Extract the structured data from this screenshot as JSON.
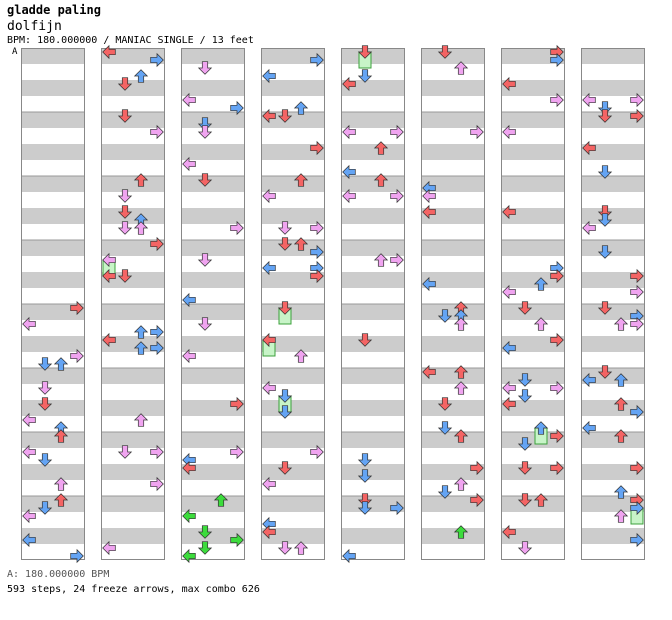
{
  "header": {
    "song_title": "gladde paling",
    "artist": "dolfijn",
    "meta": "BPM: 180.000000 / MANIAC SINGLE / 13 feet",
    "segment_marker": "A"
  },
  "footer": {
    "bpm_line": "A: 180.000000 BPM",
    "stats_line": "593 steps, 24 freeze arrows, max combo 626"
  },
  "colors": {
    "quarter": "#f46464",
    "eighth": "#f0a4f0",
    "sixteenth": "#64a4f4",
    "special": "#3cdc3c",
    "freeze_fill": "#c8f4c8",
    "stripe": "#cccccc",
    "border": "#888888"
  },
  "icons": {
    "left_arrow": "left-arrow-icon",
    "down_arrow": "down-arrow-icon",
    "up_arrow": "up-arrow-icon",
    "right_arrow": "right-arrow-icon"
  },
  "chart_data": {
    "type": "table",
    "columns": 8,
    "measures_per_column": 8,
    "lanes": [
      "left",
      "down",
      "up",
      "right"
    ],
    "total_steps": 593,
    "freeze_arrows": 24,
    "max_combo": 626,
    "bpm": 180.0,
    "difficulty": "MANIAC SINGLE",
    "feet": 13
  }
}
